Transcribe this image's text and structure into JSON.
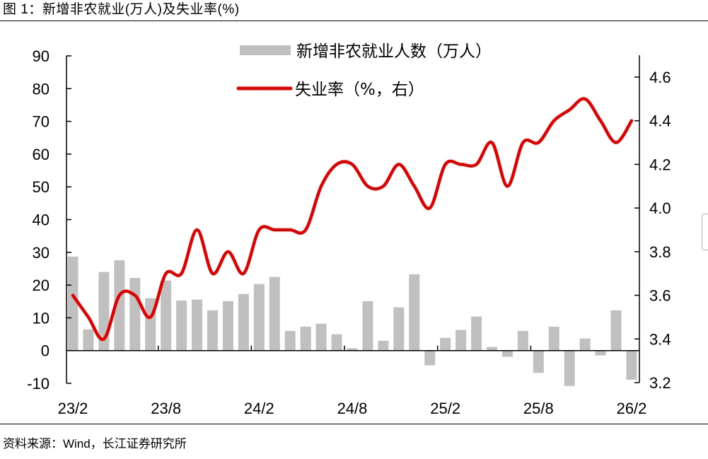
{
  "figure": {
    "title": "图 1：新增非农就业(万人)及失业率(%)",
    "source": "资料来源：Wind，长江证券研究所"
  },
  "colors": {
    "bar": "#c0c0c0",
    "line": "#e00000",
    "axis": "#000000"
  },
  "chart_data": {
    "type": "bar+line",
    "title": "新增非农就业(万人)及失业率(%)",
    "categories": [
      "23/2",
      "23/3",
      "23/4",
      "23/5",
      "23/6",
      "23/7",
      "23/8",
      "23/9",
      "23/10",
      "23/11",
      "23/12",
      "24/1",
      "24/2",
      "24/3",
      "24/4",
      "24/5",
      "24/6",
      "24/7",
      "24/8",
      "24/9",
      "24/10",
      "24/11",
      "24/12",
      "25/1",
      "25/2",
      "25/3",
      "25/4",
      "25/5",
      "25/6",
      "25/7",
      "25/8",
      "25/9",
      "25/10",
      "25/11",
      "25/12",
      "26/1",
      "26/2"
    ],
    "x_tick_labels": [
      "23/2",
      "23/8",
      "24/2",
      "24/8",
      "25/2",
      "25/8",
      "26/2"
    ],
    "series": [
      {
        "name": "新增非农就业人数（万人）",
        "type": "bar",
        "axis": "left",
        "values": [
          28.7,
          6.5,
          24.0,
          27.6,
          22.2,
          16.0,
          21.4,
          15.3,
          15.6,
          12.3,
          15.1,
          17.3,
          20.3,
          22.5,
          6.0,
          7.3,
          8.2,
          5.0,
          0.7,
          15.1,
          3.0,
          13.2,
          23.3,
          -4.5,
          3.9,
          6.3,
          10.4,
          1.1,
          -1.9,
          6.0,
          -6.8,
          7.3,
          -10.8,
          3.7,
          -1.5,
          12.3,
          -8.9
        ]
      },
      {
        "name": "失业率（%，右）",
        "type": "line",
        "axis": "right",
        "values": [
          3.6,
          3.5,
          3.4,
          3.6,
          3.6,
          3.5,
          3.7,
          3.7,
          3.9,
          3.7,
          3.8,
          3.7,
          3.9,
          3.9,
          3.9,
          3.9,
          4.1,
          4.2,
          4.2,
          4.1,
          4.1,
          4.2,
          4.1,
          4.0,
          4.2,
          4.2,
          4.2,
          4.3,
          4.1,
          4.3,
          4.3,
          4.4,
          4.45,
          4.5,
          4.4,
          4.3,
          4.4
        ]
      }
    ],
    "y_left": {
      "min": -10,
      "max": 90,
      "step": 10,
      "ticks": [
        "90",
        "80",
        "70",
        "60",
        "50",
        "40",
        "30",
        "20",
        "10",
        "0",
        "-10"
      ]
    },
    "y_right": {
      "min": 3.2,
      "max": 4.7,
      "step": 0.2,
      "ticks": [
        "4.6",
        "4.4",
        "4.2",
        "4.0",
        "3.8",
        "3.6",
        "3.4",
        "3.2"
      ]
    },
    "legend": {
      "position": "top-center",
      "items": [
        {
          "label": "新增非农就业人数（万人）",
          "kind": "bar"
        },
        {
          "label": "失业率（%，右）",
          "kind": "line"
        }
      ]
    },
    "grid": false
  }
}
